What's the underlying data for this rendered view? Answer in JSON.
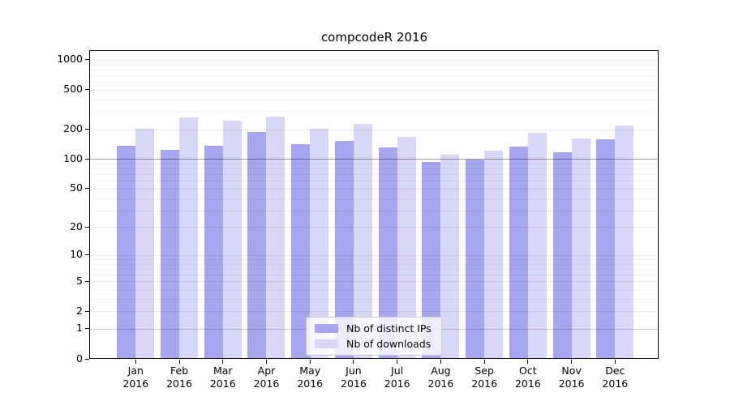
{
  "figure": {
    "title": "compcodeR 2016",
    "background": "#ffffff"
  },
  "legend": {
    "items": [
      {
        "label": "Nb of distinct IPs",
        "color": "#a5a5f0"
      },
      {
        "label": "Nb of downloads",
        "color": "#d7d7f8"
      }
    ]
  },
  "chart_data": {
    "type": "bar",
    "title": "compcodeR 2016",
    "categories": [
      "Jan 2016",
      "Feb 2016",
      "Mar 2016",
      "Apr 2016",
      "May 2016",
      "Jun 2016",
      "Jul 2016",
      "Aug 2016",
      "Sep 2016",
      "Oct 2016",
      "Nov 2016",
      "Dec 2016"
    ],
    "x_tick_month": [
      "Jan",
      "Feb",
      "Mar",
      "Apr",
      "May",
      "Jun",
      "Jul",
      "Aug",
      "Sep",
      "Oct",
      "Nov",
      "Dec"
    ],
    "x_tick_year": "2016",
    "series": [
      {
        "name": "Nb of distinct IPs",
        "color": "#a5a5f0",
        "values": [
          135,
          121,
          133,
          183,
          140,
          151,
          128,
          92,
          98,
          131,
          116,
          156
        ]
      },
      {
        "name": "Nb of downloads",
        "color": "#d7d7f8",
        "values": [
          200,
          258,
          239,
          264,
          198,
          224,
          166,
          109,
          119,
          181,
          158,
          213
        ]
      }
    ],
    "yscale": "log1p",
    "yticks": [
      0,
      1,
      2,
      5,
      10,
      20,
      50,
      100,
      200,
      500,
      1000
    ],
    "ytick_labels": [
      "0",
      "1",
      "2",
      "5",
      "10",
      "20",
      "50",
      "100",
      "200",
      "500",
      "1000"
    ],
    "yticks_minor": [
      3,
      4,
      6,
      7,
      8,
      9,
      30,
      40,
      60,
      70,
      80,
      90,
      300,
      400,
      600,
      700,
      800,
      900
    ],
    "ylim": [
      0,
      1240
    ],
    "grid": true,
    "legend_position": "lower center",
    "xlabel": "",
    "ylabel": ""
  }
}
